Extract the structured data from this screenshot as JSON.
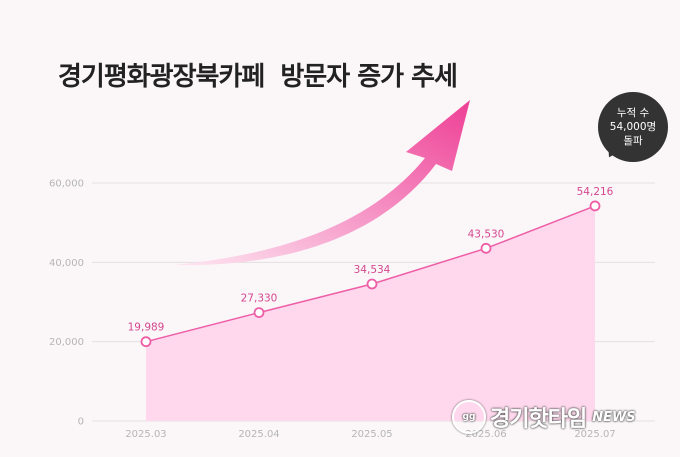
{
  "chart_data": {
    "type": "area",
    "title": "경기평화광장북카페  방문자 증가 추세",
    "categories": [
      "2025.03",
      "2025.04",
      "2025.05",
      "2025.06",
      "2025.07"
    ],
    "values": [
      19989,
      27330,
      34534,
      43530,
      54216
    ],
    "value_labels": [
      "19,989",
      "27,330",
      "34,534",
      "43,530",
      "54,216"
    ],
    "yticks": [
      "0",
      "20,000",
      "40,000",
      "60,000"
    ],
    "ytick_values": [
      0,
      20000,
      40000,
      60000
    ],
    "ylim": [
      0,
      60000
    ],
    "grid": true,
    "xlabel": "",
    "ylabel": ""
  },
  "badge": {
    "line1": "누적 수",
    "line2": "54,000명",
    "line3": "돌파"
  },
  "watermark": {
    "logo": "gg",
    "name": "경기핫타임",
    "suffix": "NEWS"
  },
  "colors": {
    "line": "#ee5ea6",
    "area": "#ffd6ec",
    "arrow_start": "#fde3ef",
    "arrow_end": "#ee3f95",
    "label": "#d4478f",
    "badge_bg": "#333333"
  }
}
